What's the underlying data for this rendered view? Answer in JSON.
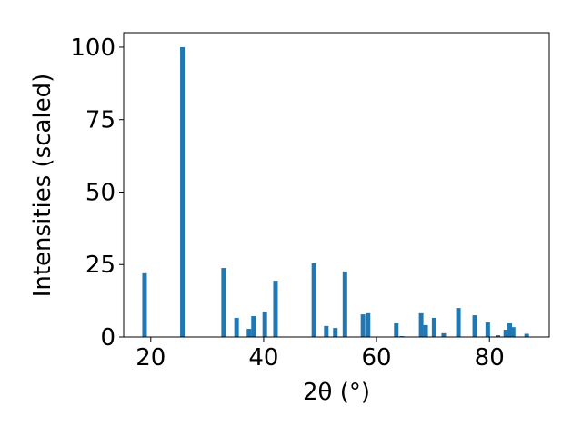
{
  "chart_data": {
    "type": "bar",
    "xlabel": "2θ (°)",
    "ylabel": "Intensities (scaled)",
    "x": [
      18.9,
      25.6,
      32.9,
      35.2,
      37.4,
      38.2,
      40.2,
      42.1,
      48.9,
      51.1,
      52.7,
      54.4,
      57.6,
      58.5,
      63.5,
      64.5,
      67.9,
      68.7,
      70.2,
      71.9,
      74.5,
      77.4,
      79.7,
      81.5,
      82.9,
      83.6,
      84.2,
      86.6
    ],
    "values": [
      22,
      100,
      23.8,
      6.6,
      2.8,
      7.2,
      8.8,
      19.4,
      25.4,
      3.8,
      3.1,
      22.6,
      7.8,
      8.2,
      4.7,
      0.3,
      8.2,
      4.1,
      6.6,
      1.3,
      10,
      7.5,
      5,
      0.6,
      2.5,
      4.7,
      3.4,
      1.1
    ],
    "color": "#1f77b4",
    "xlim": [
      15.2,
      90.6
    ],
    "ylim": [
      0,
      105
    ],
    "xticks": [
      20,
      40,
      60,
      80
    ],
    "yticks": [
      0,
      25,
      50,
      75,
      100
    ]
  }
}
